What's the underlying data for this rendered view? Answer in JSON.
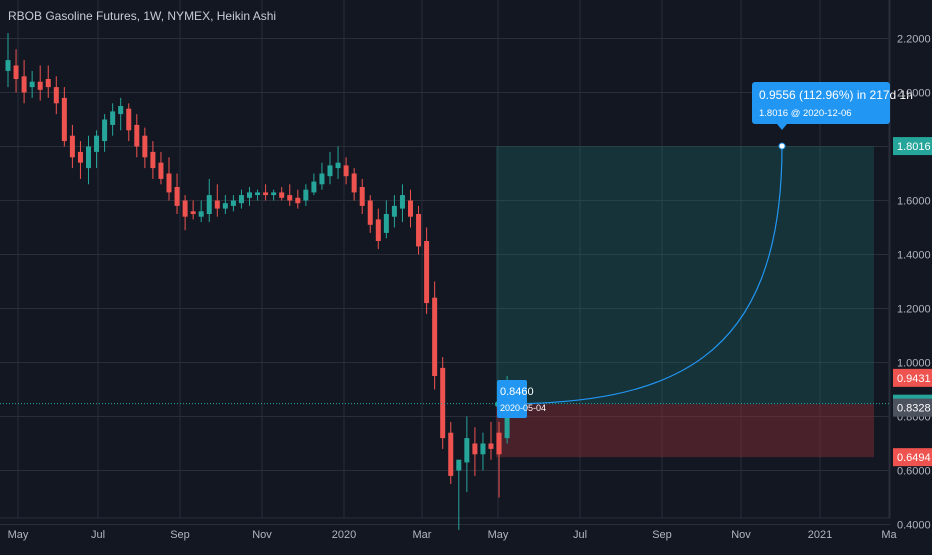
{
  "chart_data": {
    "type": "candlestick",
    "title": "RBOB Gasoline Futures, 1W, NYMEX, Heikin Ashi",
    "ylim": [
      0.3,
      2.3
    ],
    "y_ticks": [
      "0.4000",
      "0.6000",
      "0.8000",
      "1.0000",
      "1.2000",
      "1.4000",
      "1.6000",
      "1.8000",
      "2.0000",
      "2.2000"
    ],
    "x_ticks": [
      "May",
      "Jul",
      "Sep",
      "Nov",
      "2020",
      "Mar",
      "May",
      "Jul",
      "Sep",
      "Nov",
      "2021",
      "Ma"
    ],
    "colors": {
      "up": "#26a69a",
      "down": "#ef5350",
      "background": "#131722",
      "grid": "#2a2e39",
      "text": "#b2b5be",
      "accent": "#2196f3"
    },
    "candles": [
      {
        "o": 2.08,
        "h": 2.22,
        "l": 2.02,
        "c": 2.12
      },
      {
        "o": 2.1,
        "h": 2.16,
        "l": 2.0,
        "c": 2.05
      },
      {
        "o": 2.06,
        "h": 2.12,
        "l": 1.96,
        "c": 2.0
      },
      {
        "o": 2.02,
        "h": 2.08,
        "l": 1.98,
        "c": 2.04
      },
      {
        "o": 2.04,
        "h": 2.1,
        "l": 1.97,
        "c": 2.01
      },
      {
        "o": 2.05,
        "h": 2.1,
        "l": 1.98,
        "c": 2.02
      },
      {
        "o": 2.02,
        "h": 2.06,
        "l": 1.92,
        "c": 1.96
      },
      {
        "o": 1.98,
        "h": 2.02,
        "l": 1.8,
        "c": 1.82
      },
      {
        "o": 1.84,
        "h": 1.88,
        "l": 1.72,
        "c": 1.76
      },
      {
        "o": 1.78,
        "h": 1.82,
        "l": 1.68,
        "c": 1.74
      },
      {
        "o": 1.72,
        "h": 1.84,
        "l": 1.66,
        "c": 1.8
      },
      {
        "o": 1.78,
        "h": 1.86,
        "l": 1.72,
        "c": 1.84
      },
      {
        "o": 1.82,
        "h": 1.92,
        "l": 1.78,
        "c": 1.9
      },
      {
        "o": 1.88,
        "h": 1.96,
        "l": 1.84,
        "c": 1.93
      },
      {
        "o": 1.92,
        "h": 1.98,
        "l": 1.86,
        "c": 1.95
      },
      {
        "o": 1.94,
        "h": 1.96,
        "l": 1.82,
        "c": 1.86
      },
      {
        "o": 1.88,
        "h": 1.92,
        "l": 1.76,
        "c": 1.8
      },
      {
        "o": 1.84,
        "h": 1.87,
        "l": 1.72,
        "c": 1.76
      },
      {
        "o": 1.78,
        "h": 1.82,
        "l": 1.68,
        "c": 1.72
      },
      {
        "o": 1.74,
        "h": 1.78,
        "l": 1.66,
        "c": 1.68
      },
      {
        "o": 1.7,
        "h": 1.76,
        "l": 1.6,
        "c": 1.63
      },
      {
        "o": 1.65,
        "h": 1.7,
        "l": 1.55,
        "c": 1.58
      },
      {
        "o": 1.6,
        "h": 1.62,
        "l": 1.49,
        "c": 1.54
      },
      {
        "o": 1.56,
        "h": 1.6,
        "l": 1.53,
        "c": 1.55
      },
      {
        "o": 1.54,
        "h": 1.6,
        "l": 1.52,
        "c": 1.56
      },
      {
        "o": 1.55,
        "h": 1.68,
        "l": 1.52,
        "c": 1.62
      },
      {
        "o": 1.6,
        "h": 1.66,
        "l": 1.54,
        "c": 1.57
      },
      {
        "o": 1.57,
        "h": 1.62,
        "l": 1.55,
        "c": 1.59
      },
      {
        "o": 1.58,
        "h": 1.62,
        "l": 1.56,
        "c": 1.6
      },
      {
        "o": 1.59,
        "h": 1.64,
        "l": 1.57,
        "c": 1.62
      },
      {
        "o": 1.61,
        "h": 1.65,
        "l": 1.58,
        "c": 1.63
      },
      {
        "o": 1.62,
        "h": 1.64,
        "l": 1.6,
        "c": 1.63
      },
      {
        "o": 1.63,
        "h": 1.66,
        "l": 1.6,
        "c": 1.62
      },
      {
        "o": 1.62,
        "h": 1.64,
        "l": 1.6,
        "c": 1.63
      },
      {
        "o": 1.63,
        "h": 1.65,
        "l": 1.6,
        "c": 1.61
      },
      {
        "o": 1.62,
        "h": 1.66,
        "l": 1.58,
        "c": 1.6
      },
      {
        "o": 1.61,
        "h": 1.64,
        "l": 1.57,
        "c": 1.59
      },
      {
        "o": 1.6,
        "h": 1.66,
        "l": 1.58,
        "c": 1.64
      },
      {
        "o": 1.63,
        "h": 1.7,
        "l": 1.62,
        "c": 1.67
      },
      {
        "o": 1.66,
        "h": 1.74,
        "l": 1.64,
        "c": 1.7
      },
      {
        "o": 1.69,
        "h": 1.78,
        "l": 1.66,
        "c": 1.73
      },
      {
        "o": 1.72,
        "h": 1.8,
        "l": 1.68,
        "c": 1.74
      },
      {
        "o": 1.73,
        "h": 1.76,
        "l": 1.66,
        "c": 1.69
      },
      {
        "o": 1.7,
        "h": 1.72,
        "l": 1.6,
        "c": 1.63
      },
      {
        "o": 1.65,
        "h": 1.68,
        "l": 1.55,
        "c": 1.58
      },
      {
        "o": 1.6,
        "h": 1.62,
        "l": 1.48,
        "c": 1.51
      },
      {
        "o": 1.53,
        "h": 1.57,
        "l": 1.42,
        "c": 1.45
      },
      {
        "o": 1.48,
        "h": 1.6,
        "l": 1.46,
        "c": 1.55
      },
      {
        "o": 1.54,
        "h": 1.62,
        "l": 1.5,
        "c": 1.58
      },
      {
        "o": 1.57,
        "h": 1.66,
        "l": 1.52,
        "c": 1.62
      },
      {
        "o": 1.6,
        "h": 1.64,
        "l": 1.5,
        "c": 1.54
      },
      {
        "o": 1.55,
        "h": 1.58,
        "l": 1.4,
        "c": 1.43
      },
      {
        "o": 1.45,
        "h": 1.5,
        "l": 1.18,
        "c": 1.22
      },
      {
        "o": 1.24,
        "h": 1.3,
        "l": 0.9,
        "c": 0.95
      },
      {
        "o": 0.98,
        "h": 1.02,
        "l": 0.68,
        "c": 0.72
      },
      {
        "o": 0.74,
        "h": 0.78,
        "l": 0.55,
        "c": 0.58
      },
      {
        "o": 0.6,
        "h": 0.63,
        "l": 0.38,
        "c": 0.64
      },
      {
        "o": 0.63,
        "h": 0.8,
        "l": 0.52,
        "c": 0.72
      },
      {
        "o": 0.7,
        "h": 0.76,
        "l": 0.58,
        "c": 0.66
      },
      {
        "o": 0.66,
        "h": 0.74,
        "l": 0.6,
        "c": 0.7
      },
      {
        "o": 0.7,
        "h": 0.78,
        "l": 0.64,
        "c": 0.68
      },
      {
        "o": 0.74,
        "h": 0.78,
        "l": 0.5,
        "c": 0.66
      },
      {
        "o": 0.72,
        "h": 0.95,
        "l": 0.7,
        "c": 0.88
      }
    ],
    "current_price": 0.8475,
    "position": {
      "entry": 0.846,
      "target": 1.8016,
      "stop": 0.6494,
      "start_label": "2020-05-04",
      "end_label": "2020-12-06"
    },
    "price_tags": [
      {
        "value": 1.8016,
        "label": "1.8016",
        "color": "#26a69a"
      },
      {
        "value": 0.9431,
        "label": "0.9431",
        "color": "#ef5350"
      },
      {
        "value": 0.8475,
        "label": "0.8475",
        "color": "#26a69a"
      },
      {
        "value": 0.8328,
        "label": "0.8328",
        "color": "#4c525e"
      },
      {
        "value": 0.6494,
        "label": "0.6494",
        "color": "#ef5350"
      }
    ],
    "projection": {
      "line1": "0.9556 (112.96%) in 217d 1h",
      "line2": "1.8016 @ 2020-12-06"
    },
    "entry_label": {
      "line1": "0.8460",
      "line2": "2020-05-04"
    }
  }
}
